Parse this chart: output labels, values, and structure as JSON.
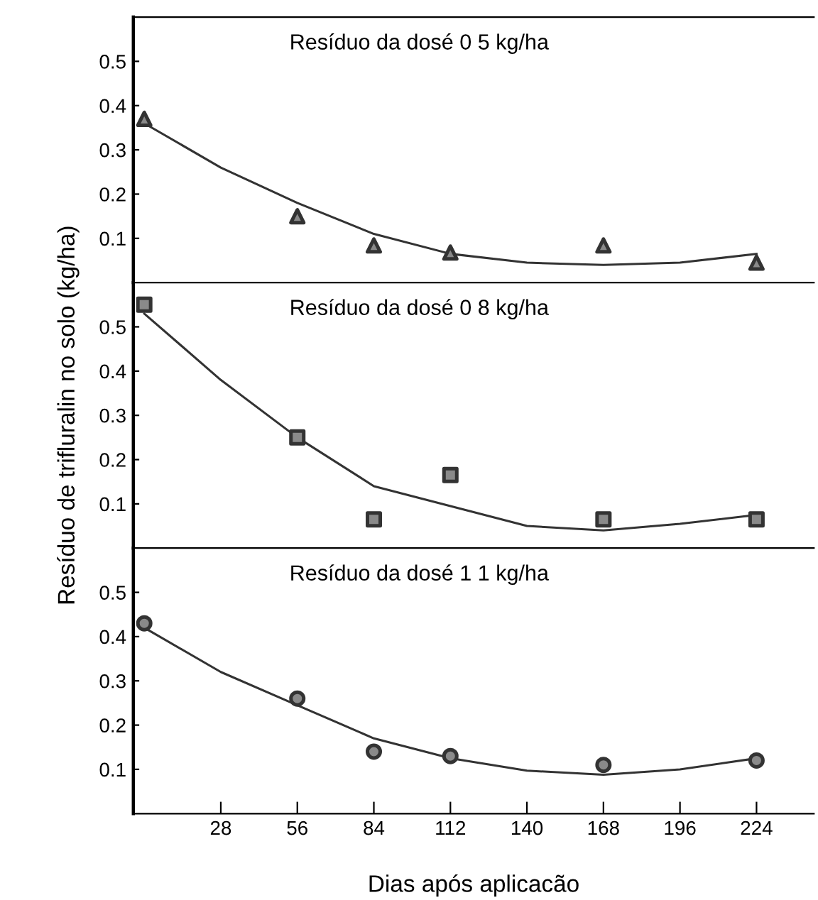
{
  "chart_data": [
    {
      "type": "scatter",
      "title": "Resíduo da dosé 0 5 kg/ha",
      "xlim": [
        -4,
        245
      ],
      "ylim": [
        0,
        0.6
      ],
      "tick_labels": "y",
      "yticks": [
        0.1,
        0.2,
        0.3,
        0.4,
        0.5
      ],
      "series": [
        {
          "marker": "triangle",
          "color": "#333333",
          "x": [
            0,
            56,
            84,
            112,
            168,
            224
          ],
          "values": [
            0.37,
            0.15,
            0.084,
            0.068,
            0.084,
            0.045
          ]
        },
        {
          "type": "line",
          "line_style": "solid",
          "color": "#333333",
          "x": [
            0,
            28,
            56,
            84,
            112,
            140,
            168,
            196,
            224
          ],
          "values": [
            0.36,
            0.26,
            0.18,
            0.11,
            0.065,
            0.045,
            0.04,
            0.045,
            0.065
          ]
        }
      ]
    },
    {
      "type": "scatter",
      "title": "Resíduo da dosé 0 8 kg/ha",
      "ylabel": "Resíduo de trifluralin no solo (kg/ha)",
      "xlim": [
        -4,
        245
      ],
      "ylim": [
        0,
        0.6
      ],
      "tick_labels": "y",
      "yticks": [
        0.1,
        0.2,
        0.3,
        0.4,
        0.5
      ],
      "series": [
        {
          "marker": "square",
          "color": "#333333",
          "x": [
            0,
            56,
            84,
            112,
            168,
            224
          ],
          "values": [
            0.55,
            0.25,
            0.065,
            0.165,
            0.065,
            0.065
          ]
        },
        {
          "type": "line",
          "line_style": "solid",
          "color": "#333333",
          "x": [
            0,
            28,
            56,
            84,
            112,
            140,
            168,
            196,
            224
          ],
          "values": [
            0.53,
            0.38,
            0.25,
            0.14,
            0.095,
            0.05,
            0.04,
            0.055,
            0.075
          ]
        }
      ]
    },
    {
      "type": "scatter",
      "title": "Resíduo da dosé 1 1 kg/ha",
      "xlabel": "Dias após aplicacão",
      "xlim": [
        -4,
        245
      ],
      "ylim": [
        0,
        0.6
      ],
      "xticks": [
        28,
        56,
        84,
        112,
        140,
        168,
        196,
        224
      ],
      "yticks": [
        0.1,
        0.2,
        0.3,
        0.4,
        0.5
      ],
      "series": [
        {
          "marker": "circle",
          "color": "#333333",
          "x": [
            0,
            56,
            84,
            112,
            168,
            224
          ],
          "values": [
            0.43,
            0.26,
            0.14,
            0.13,
            0.11,
            0.12
          ]
        },
        {
          "type": "line",
          "line_style": "solid",
          "color": "#333333",
          "x": [
            0,
            28,
            56,
            84,
            112,
            140,
            168,
            196,
            224
          ],
          "values": [
            0.42,
            0.32,
            0.245,
            0.17,
            0.125,
            0.097,
            0.088,
            0.1,
            0.125
          ]
        }
      ]
    }
  ]
}
